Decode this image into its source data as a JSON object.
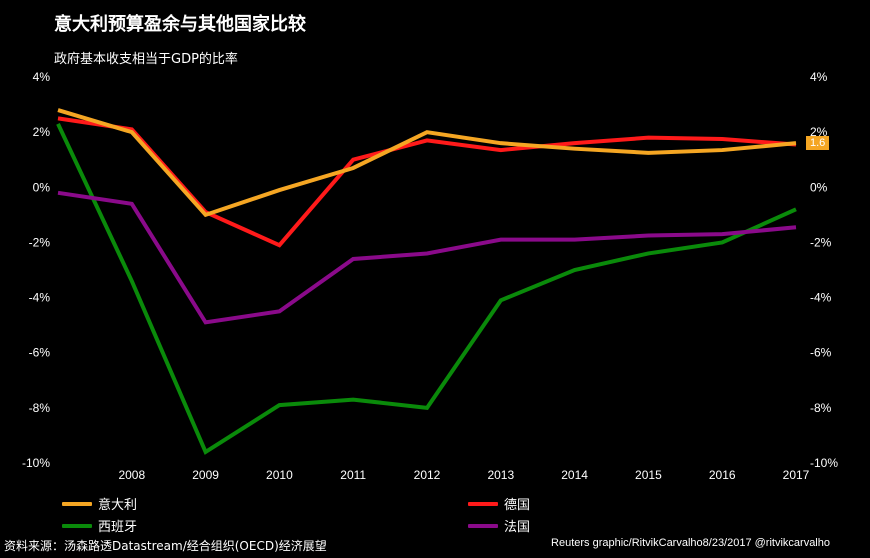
{
  "title": "意大利预算盈余与其他国家比较",
  "subtitle": "政府基本收支相当于GDP的比率",
  "source": "资料来源：汤森路透Datastream/经合组织(OECD)经济展望",
  "credit": "Reuters graphic/RitvikCarvalho8/23/2017  @ritvikcarvalho",
  "end_label": "1.6",
  "chart_data": {
    "type": "line",
    "title": "意大利预算盈余与其他国家比较",
    "subtitle": "政府基本收支相当于GDP的比率",
    "x": [
      2007,
      2008,
      2009,
      2010,
      2011,
      2012,
      2013,
      2014,
      2015,
      2016,
      2017
    ],
    "xticks": [
      "2008",
      "2009",
      "2010",
      "2011",
      "2012",
      "2013",
      "2014",
      "2015",
      "2016",
      "2017"
    ],
    "yticks": [
      "4%",
      "2%",
      "0%",
      "-2%",
      "-4%",
      "-6%",
      "-8%",
      "-10%"
    ],
    "ylim": [
      -10,
      4
    ],
    "grid": false,
    "legend_position": "bottom",
    "series": [
      {
        "name": "意大利",
        "color": "#f5a623",
        "values": [
          2.8,
          2.0,
          -1.0,
          -0.1,
          0.7,
          2.0,
          1.6,
          1.4,
          1.25,
          1.35,
          1.6
        ]
      },
      {
        "name": "德国",
        "color": "#ff1a1a",
        "values": [
          2.5,
          2.1,
          -0.9,
          -2.1,
          1.0,
          1.7,
          1.35,
          1.6,
          1.8,
          1.75,
          1.55
        ]
      },
      {
        "name": "西班牙",
        "color": "#0a8a0a",
        "values": [
          2.3,
          -3.4,
          -9.6,
          -7.9,
          -7.7,
          -8.0,
          -4.1,
          -3.0,
          -2.4,
          -2.0,
          -0.8
        ]
      },
      {
        "name": "法国",
        "color": "#8a0a8a",
        "values": [
          -0.2,
          -0.6,
          -4.9,
          -4.5,
          -2.6,
          -2.4,
          -1.9,
          -1.9,
          -1.75,
          -1.7,
          -1.45
        ]
      }
    ]
  }
}
